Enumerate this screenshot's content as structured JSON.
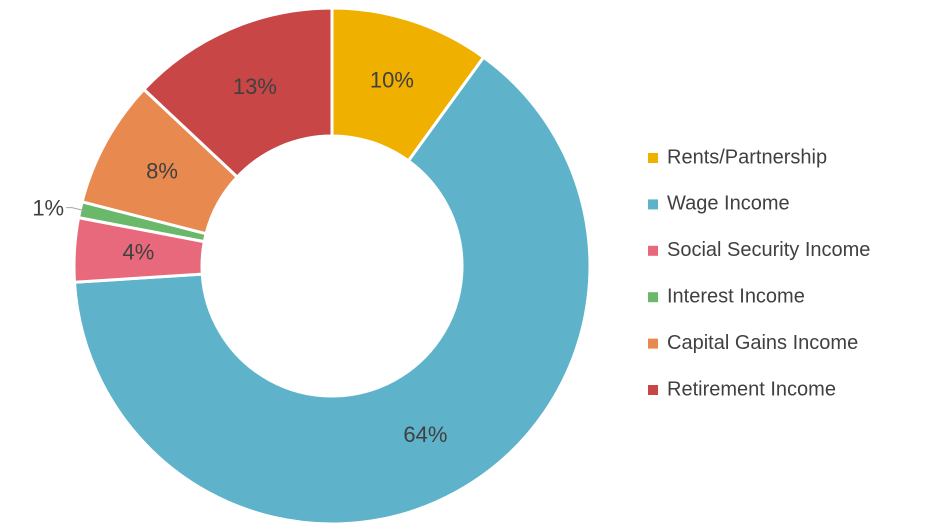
{
  "chart_data": {
    "type": "donut",
    "categories": [
      "Rents/Partnership",
      "Wage Income",
      "Social Security Income",
      "Interest Income",
      "Capital Gains Income",
      "Retirement Income"
    ],
    "values": [
      10,
      64,
      4,
      1,
      8,
      13
    ],
    "value_labels": [
      "10%",
      "64%",
      "4%",
      "1%",
      "8%",
      "13%"
    ],
    "colors": [
      "#f0b000",
      "#5eb3cb",
      "#e8697b",
      "#6ab86a",
      "#e8894f",
      "#c94646"
    ],
    "legend": "right"
  }
}
